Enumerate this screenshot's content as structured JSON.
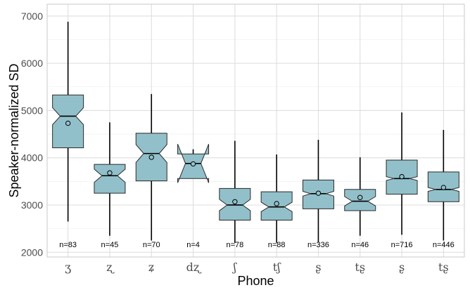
{
  "chart_data": {
    "type": "boxplot",
    "xlabel": "Phone",
    "ylabel": "Speaker-normalized SD",
    "ylim": [
      1900,
      7250
    ],
    "yticks": [
      2000,
      3000,
      4000,
      5000,
      6000,
      7000
    ],
    "ytick_labels": [
      "2000",
      "3000",
      "4000",
      "5000",
      "6000",
      "7000"
    ],
    "grid": true,
    "notched": true,
    "colors": {
      "box_fill": "#92c0ca",
      "box_stroke": "#2a2a2a",
      "grid": "#dcdcdc"
    },
    "categories": [
      {
        "label": "ʒ",
        "n": "n=83",
        "min": 2650,
        "q1": 4210,
        "median": 4880,
        "q3": 5330,
        "max": 6880,
        "mean": 4730,
        "notch_lo": 4700,
        "notch_hi": 5060
      },
      {
        "label": "ʐ",
        "n": "n=45",
        "min": 2350,
        "q1": 3250,
        "median": 3620,
        "q3": 3860,
        "max": 4750,
        "mean": 3680,
        "notch_lo": 3480,
        "notch_hi": 3760
      },
      {
        "label": "ʑ",
        "n": "n=70",
        "min": 2250,
        "q1": 3510,
        "median": 4090,
        "q3": 4520,
        "max": 5350,
        "mean": 4010,
        "notch_lo": 3900,
        "notch_hi": 4280
      },
      {
        "label": "dʐ",
        "n": "n=4",
        "min": 3560,
        "q1": 3560,
        "median": 3880,
        "q3": 4080,
        "max": 4180,
        "mean": 3870,
        "notch_lo": 3470,
        "notch_hi": 4290
      },
      {
        "label": "ʃ",
        "n": "n=78",
        "min": 2200,
        "q1": 2680,
        "median": 3000,
        "q3": 3350,
        "max": 4360,
        "mean": 3070,
        "notch_lo": 2880,
        "notch_hi": 3120
      },
      {
        "label": "tʃ",
        "n": "n=88",
        "min": 2200,
        "q1": 2680,
        "median": 2960,
        "q3": 3280,
        "max": 4070,
        "mean": 3030,
        "notch_lo": 2860,
        "notch_hi": 3060
      },
      {
        "label": "ʂ",
        "n": "n=336",
        "min": 2210,
        "q1": 2920,
        "median": 3240,
        "q3": 3530,
        "max": 4380,
        "mean": 3250,
        "notch_lo": 3190,
        "notch_hi": 3290
      },
      {
        "label": "tʂ",
        "n": "n=46",
        "min": 2350,
        "q1": 2880,
        "median": 3080,
        "q3": 3330,
        "max": 4010,
        "mean": 3160,
        "notch_lo": 2980,
        "notch_hi": 3180
      },
      {
        "label": "ʂ",
        "n": "n=716",
        "min": 2370,
        "q1": 3230,
        "median": 3560,
        "q3": 3950,
        "max": 4960,
        "mean": 3600,
        "notch_lo": 3520,
        "notch_hi": 3600
      },
      {
        "label": "tʂ",
        "n": "n=446",
        "min": 2250,
        "q1": 3070,
        "median": 3330,
        "q3": 3700,
        "max": 4590,
        "mean": 3370,
        "notch_lo": 3290,
        "notch_hi": 3370
      }
    ]
  }
}
